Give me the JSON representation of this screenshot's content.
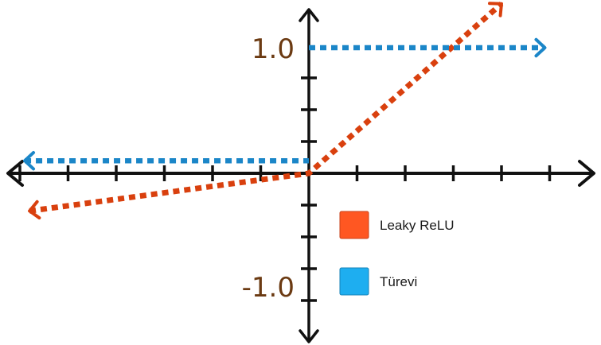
{
  "chart_data": {
    "type": "line",
    "title": "",
    "xlabel": "",
    "ylabel": "",
    "xlim": [
      -6.5,
      6.0
    ],
    "ylim": [
      -1.75,
      1.25
    ],
    "y_tick_labels": [
      {
        "value": 1.0,
        "label": "1.0"
      },
      {
        "value": -1.0,
        "label": "-1.0"
      }
    ],
    "grid": false,
    "legend_position": "bottom-right",
    "series": [
      {
        "name": "Leaky ReLU",
        "color": "#d9400e",
        "style": "dotted-arrow",
        "x": [
          -5.8,
          0,
          4.0
        ],
        "y": [
          -0.3,
          0,
          1.35
        ]
      },
      {
        "name": "Türevi",
        "color": "#1b86c8",
        "style": "dotted-arrow",
        "segments": [
          {
            "x": [
              -5.9,
              0
            ],
            "y": [
              0.1,
              0.1
            ]
          },
          {
            "x": [
              0,
              4.9
            ],
            "y": [
              1.0,
              1.0
            ]
          }
        ]
      }
    ],
    "legend": [
      {
        "label": "Leaky ReLU",
        "color": "#ff5722"
      },
      {
        "label": "Türevi",
        "color": "#1eaef0"
      }
    ]
  }
}
